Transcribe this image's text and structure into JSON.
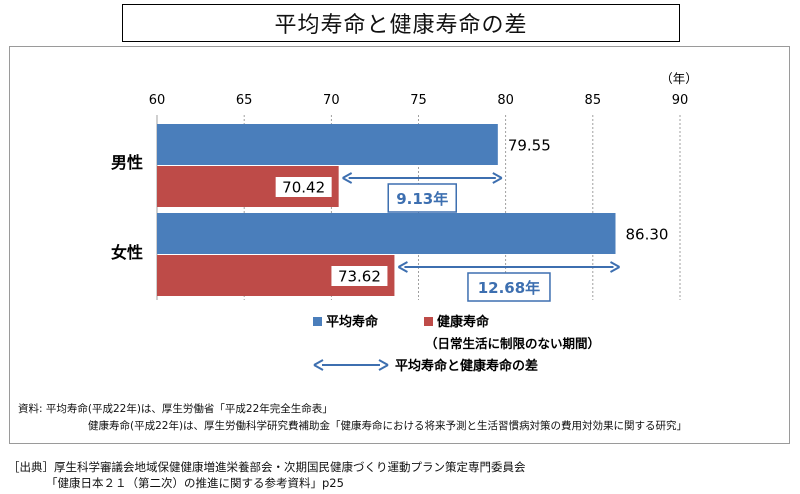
{
  "title": "平均寿命と健康寿命の差",
  "colors": {
    "avg": "#4a7ebb",
    "health": "#be4b48",
    "gap_text": "#3d6fb0",
    "arrow": "#3d6fb0",
    "grid": "#888888"
  },
  "chart_data": {
    "type": "bar",
    "orientation": "horizontal",
    "unit_label": "（年）",
    "x_ticks": [
      60,
      65,
      70,
      75,
      80,
      85,
      90
    ],
    "xlim": [
      60,
      90
    ],
    "grid": true,
    "categories": [
      "男性",
      "女性"
    ],
    "series": [
      {
        "name": "平均寿命",
        "color": "#4a7ebb",
        "values": [
          79.55,
          86.3
        ],
        "labels": [
          "79.55",
          "86.30"
        ]
      },
      {
        "name": "健康寿命",
        "color": "#be4b48",
        "values": [
          70.42,
          73.62
        ],
        "labels": [
          "70.42",
          "73.62"
        ]
      }
    ],
    "gaps": [
      "9.13年",
      "12.68年"
    ],
    "legend": {
      "avg_label": "平均寿命",
      "health_label": "健康寿命",
      "health_sub": "（日常生活に制限のない期間）",
      "gap_label": "平均寿命と健康寿命の差"
    }
  },
  "source_note": {
    "line1": "資料: 平均寿命(平成22年)は、厚生労働省「平成22年完全生命表」",
    "line2": "健康寿命(平成22年)は、厚生労働科学研究費補助金「健康寿命における将来予測と生活習慣病対策の費用対効果に関する研究」"
  },
  "citation": {
    "line1": "［出典］厚生科学審議会地域保健健康増進栄養部会・次期国民健康づくり運動プラン策定専門委員会",
    "line2": "「健康日本２１（第二次）の推進に関する参考資料」p25"
  }
}
